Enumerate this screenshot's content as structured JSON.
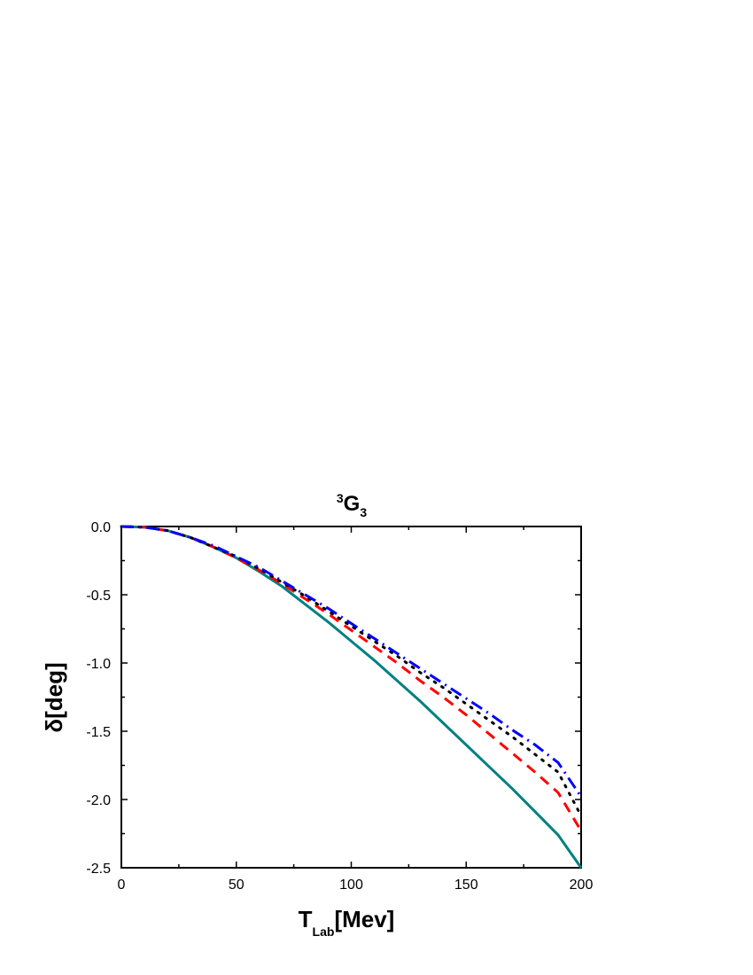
{
  "chart_data": {
    "type": "line",
    "title": {
      "pre_sup": "3",
      "main": "G",
      "sub": "3"
    },
    "xlabel": {
      "main": "T",
      "sub": "Lab",
      "rest": "[Mev]"
    },
    "ylabel": "δ[deg]",
    "xlim": [
      0,
      200
    ],
    "ylim": [
      -2.5,
      0.0
    ],
    "xticks": [
      0,
      50,
      100,
      150,
      200
    ],
    "xtick_labels": [
      "0",
      "50",
      "100",
      "150",
      "200"
    ],
    "yticks": [
      0.0,
      -0.5,
      -1.0,
      -1.5,
      -2.0,
      -2.5
    ],
    "ytick_labels": [
      "0.0",
      "-0.5",
      "-1.0",
      "-1.5",
      "-2.0",
      "-2.5"
    ],
    "grid": false,
    "legend": "none",
    "x": [
      0,
      10,
      20,
      30,
      40,
      50,
      60,
      70,
      80,
      90,
      100,
      110,
      120,
      130,
      140,
      150,
      160,
      170,
      180,
      190,
      200
    ],
    "series": [
      {
        "style": "solid",
        "color": "#008080",
        "values": [
          0.0,
          -0.005,
          -0.03,
          -0.08,
          -0.15,
          -0.23,
          -0.33,
          -0.44,
          -0.57,
          -0.7,
          -0.84,
          -0.98,
          -1.13,
          -1.28,
          -1.44,
          -1.6,
          -1.76,
          -1.92,
          -2.09,
          -2.26,
          -2.5
        ]
      },
      {
        "style": "dashed",
        "color": "#ff0000",
        "values": [
          0.0,
          -0.005,
          -0.03,
          -0.08,
          -0.15,
          -0.23,
          -0.32,
          -0.42,
          -0.53,
          -0.64,
          -0.76,
          -0.88,
          -1.0,
          -1.13,
          -1.25,
          -1.38,
          -1.52,
          -1.66,
          -1.8,
          -1.95,
          -2.23
        ]
      },
      {
        "style": "dotted",
        "color": "#000000",
        "values": [
          0.0,
          -0.005,
          -0.03,
          -0.08,
          -0.15,
          -0.22,
          -0.31,
          -0.41,
          -0.51,
          -0.62,
          -0.73,
          -0.84,
          -0.95,
          -1.07,
          -1.18,
          -1.3,
          -1.42,
          -1.54,
          -1.67,
          -1.8,
          -2.12
        ]
      },
      {
        "style": "dashdot",
        "color": "#0000ff",
        "values": [
          0.0,
          -0.005,
          -0.03,
          -0.08,
          -0.14,
          -0.22,
          -0.3,
          -0.4,
          -0.5,
          -0.6,
          -0.71,
          -0.82,
          -0.93,
          -1.04,
          -1.15,
          -1.26,
          -1.37,
          -1.49,
          -1.6,
          -1.73,
          -1.98
        ]
      }
    ]
  }
}
